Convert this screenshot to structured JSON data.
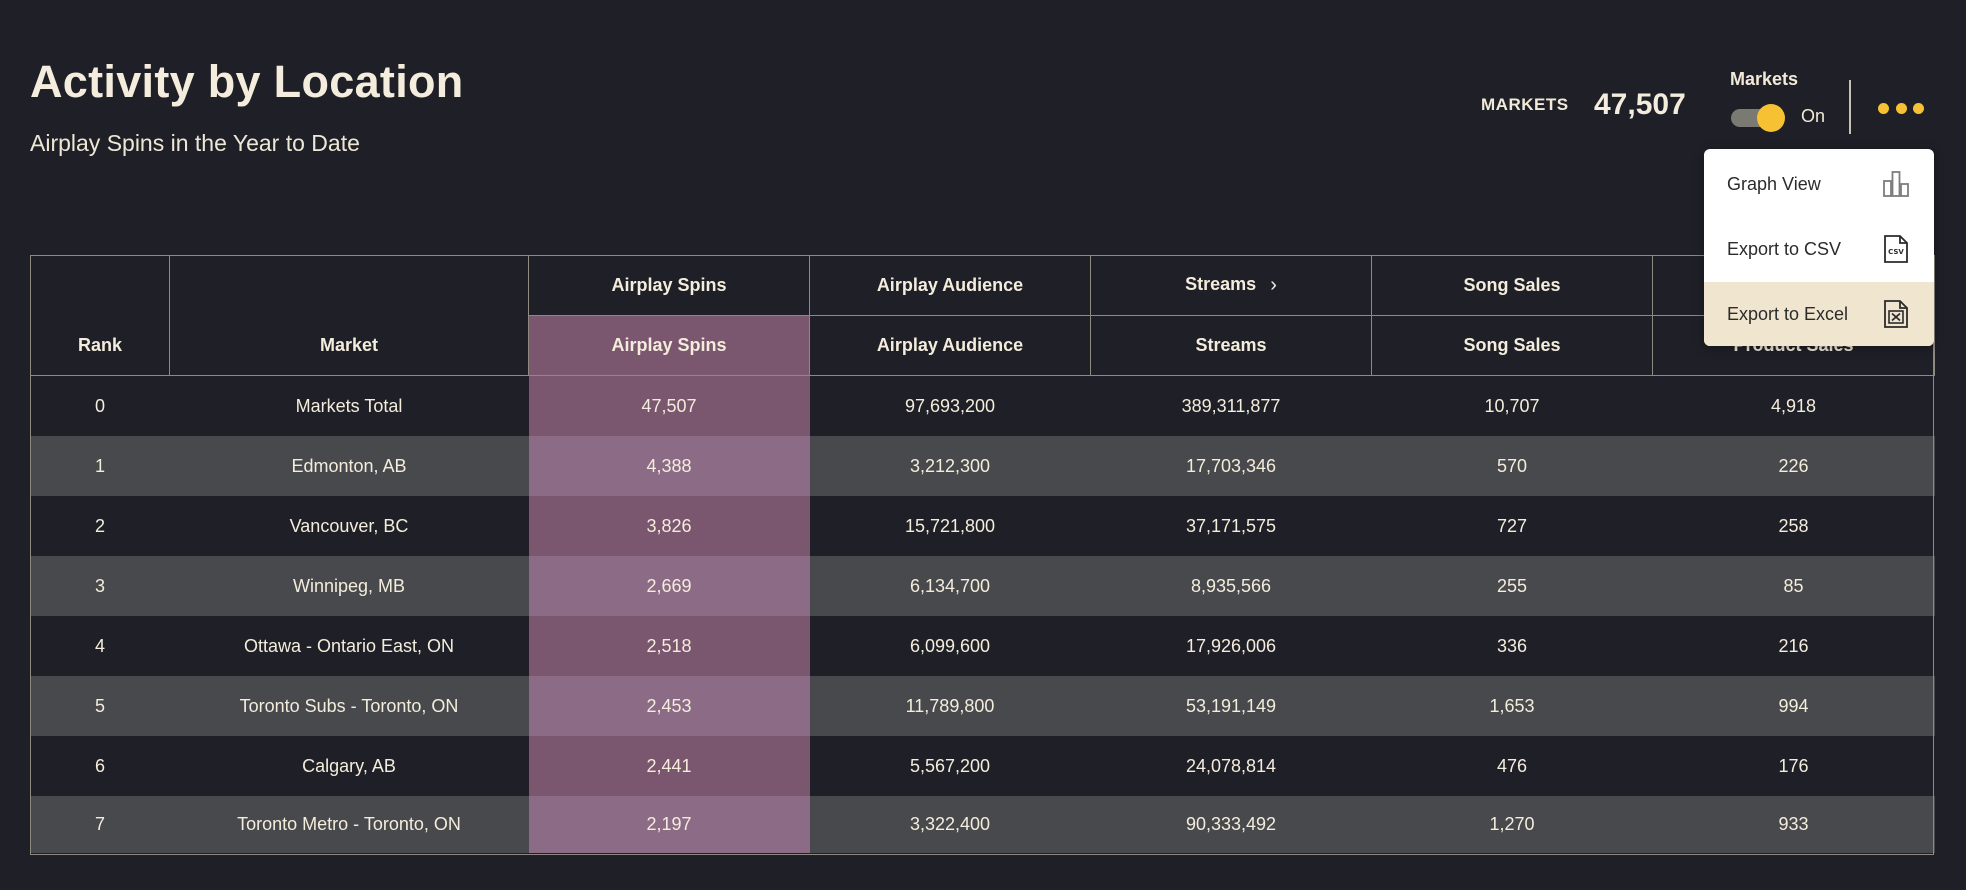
{
  "header": {
    "title": "Activity by Location",
    "subtitle": "Airplay Spins in the Year to Date"
  },
  "stats": {
    "label": "MARKETS",
    "value": "47,507"
  },
  "markets_toggle": {
    "title": "Markets",
    "state_label": "On",
    "on": true
  },
  "menu": {
    "items": [
      {
        "label": "Graph View",
        "icon": "bar-chart-icon"
      },
      {
        "label": "Export to CSV",
        "icon": "csv-file-icon"
      },
      {
        "label": "Export to Excel",
        "icon": "excel-file-icon"
      }
    ],
    "csv_badge": "CSV"
  },
  "table": {
    "group_headers": [
      "Airplay Spins",
      "Airplay Audience",
      "Streams",
      "Song Sales",
      ""
    ],
    "columns": [
      "Rank",
      "Market",
      "Airplay Spins",
      "Airplay Audience",
      "Streams",
      "Song Sales",
      "Product Sales"
    ],
    "rows": [
      [
        "0",
        "Markets Total",
        "47,507",
        "97,693,200",
        "389,311,877",
        "10,707",
        "4,918"
      ],
      [
        "1",
        "Edmonton, AB",
        "4,388",
        "3,212,300",
        "17,703,346",
        "570",
        "226"
      ],
      [
        "2",
        "Vancouver, BC",
        "3,826",
        "15,721,800",
        "37,171,575",
        "727",
        "258"
      ],
      [
        "3",
        "Winnipeg, MB",
        "2,669",
        "6,134,700",
        "8,935,566",
        "255",
        "85"
      ],
      [
        "4",
        "Ottawa - Ontario East, ON",
        "2,518",
        "6,099,600",
        "17,926,006",
        "336",
        "216"
      ],
      [
        "5",
        "Toronto Subs - Toronto, ON",
        "2,453",
        "11,789,800",
        "53,191,149",
        "1,653",
        "994"
      ],
      [
        "6",
        "Calgary, AB",
        "2,441",
        "5,567,200",
        "24,078,814",
        "476",
        "176"
      ],
      [
        "7",
        "Toronto Metro - Toronto, ON",
        "2,197",
        "3,322,400",
        "90,333,492",
        "1,270",
        "933"
      ]
    ]
  },
  "colors": {
    "background": "#1f2027",
    "accent": "#f6c233",
    "highlight_column": "#7a566f",
    "row_alt": "#48494c"
  }
}
